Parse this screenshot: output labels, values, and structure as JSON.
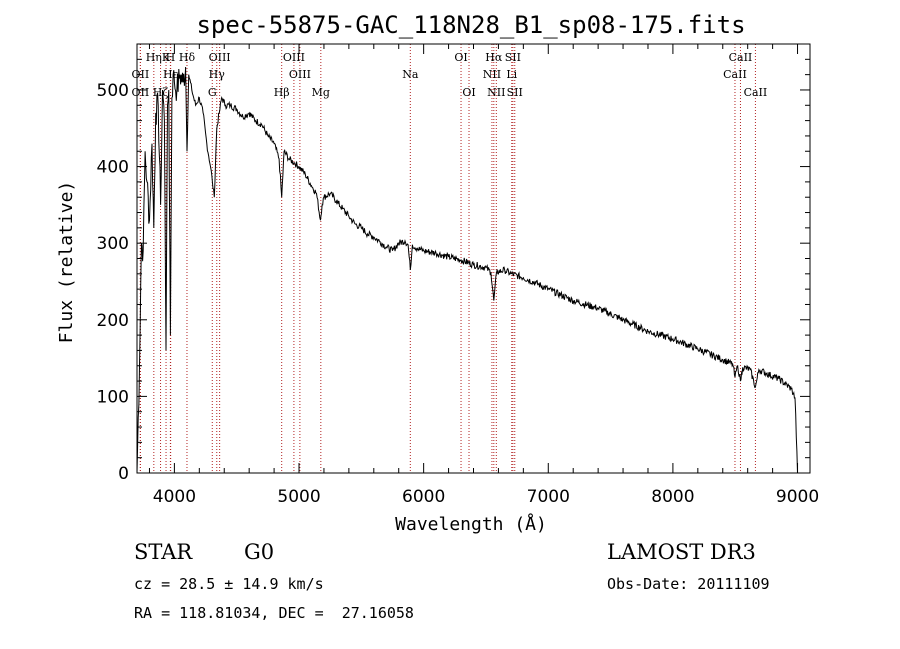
{
  "chart_data": {
    "type": "line",
    "title": "spec-55875-GAC_118N28_B1_sp08-175.fits",
    "xlabel": "Wavelength (Å)",
    "ylabel": "Flux (relative)",
    "xlim": [
      3700,
      9100
    ],
    "ylim": [
      0,
      560
    ],
    "x_ticks": [
      4000,
      5000,
      6000,
      7000,
      8000,
      9000
    ],
    "y_ticks": [
      0,
      100,
      200,
      300,
      400,
      500
    ],
    "x_tick_labels": [
      "4000",
      "5000",
      "6000",
      "7000",
      "8000",
      "9000"
    ],
    "y_tick_labels": [
      "0",
      "100",
      "200",
      "300",
      "400",
      "500"
    ],
    "series": [
      {
        "name": "spectrum",
        "x": [
          3700,
          3720,
          3735,
          3750,
          3765,
          3780,
          3800,
          3820,
          3835,
          3850,
          3870,
          3889,
          3905,
          3920,
          3933,
          3945,
          3955,
          3968,
          3980,
          3990,
          4000,
          4020,
          4045,
          4070,
          4090,
          4101,
          4115,
          4140,
          4170,
          4200,
          4230,
          4260,
          4290,
          4305,
          4320,
          4340,
          4360,
          4380,
          4410,
          4450,
          4500,
          4550,
          4600,
          4650,
          4700,
          4750,
          4800,
          4840,
          4861,
          4880,
          4920,
          4960,
          5000,
          5050,
          5100,
          5140,
          5172,
          5185,
          5200,
          5250,
          5300,
          5350,
          5400,
          5450,
          5500,
          5550,
          5600,
          5650,
          5700,
          5750,
          5800,
          5850,
          5875,
          5893,
          5910,
          5950,
          6000,
          6100,
          6200,
          6300,
          6400,
          6500,
          6540,
          6563,
          6585,
          6650,
          6700,
          6800,
          6900,
          7000,
          7200,
          7400,
          7600,
          7800,
          8000,
          8200,
          8400,
          8480,
          8498,
          8520,
          8542,
          8560,
          8620,
          8662,
          8690,
          8750,
          8850,
          8950,
          8980,
          9000
        ],
        "y": [
          0,
          140,
          300,
          290,
          420,
          380,
          330,
          430,
          320,
          470,
          480,
          350,
          500,
          460,
          160,
          480,
          500,
          180,
          490,
          520,
          510,
          500,
          520,
          510,
          530,
          420,
          520,
          500,
          480,
          490,
          470,
          430,
          400,
          380,
          360,
          450,
          470,
          490,
          480,
          480,
          475,
          465,
          470,
          460,
          455,
          440,
          430,
          410,
          360,
          420,
          410,
          405,
          400,
          390,
          375,
          365,
          330,
          350,
          360,
          365,
          355,
          345,
          335,
          325,
          320,
          312,
          308,
          302,
          295,
          290,
          300,
          303,
          298,
          265,
          298,
          293,
          290,
          287,
          282,
          278,
          272,
          268,
          262,
          225,
          262,
          265,
          260,
          255,
          248,
          240,
          225,
          215,
          200,
          185,
          175,
          162,
          148,
          142,
          125,
          140,
          120,
          138,
          135,
          112,
          135,
          130,
          123,
          110,
          98,
          0
        ]
      }
    ],
    "line_names": [
      "Hδ",
      "Hε",
      "K",
      "H",
      "OII",
      "OIII",
      "Hγ",
      "G",
      "Hβ",
      "Mg",
      "Na",
      "OI",
      "Hα",
      "NII",
      "SII",
      "Li",
      "CaII"
    ],
    "annotations": [
      {
        "x": 3727,
        "label": "OII",
        "row": 2
      },
      {
        "x": 3727,
        "label": "OII",
        "row": 3
      },
      {
        "x": 3835,
        "label": "Hη",
        "row": 1
      },
      {
        "x": 3889,
        "label": "Hζ",
        "row": 3
      },
      {
        "x": 3933,
        "label": "K",
        "row": 1
      },
      {
        "x": 3968,
        "label": "H",
        "row": 1
      },
      {
        "x": 3970,
        "label": "Hε",
        "row": 2
      },
      {
        "x": 4101,
        "label": "Hδ",
        "row": 1
      },
      {
        "x": 4304,
        "label": "G",
        "row": 3
      },
      {
        "x": 4340,
        "label": "Hγ",
        "row": 2
      },
      {
        "x": 4363,
        "label": "OIII",
        "row": 1
      },
      {
        "x": 4861,
        "label": "Hβ",
        "row": 3
      },
      {
        "x": 4959,
        "label": "OIII",
        "row": 1
      },
      {
        "x": 5007,
        "label": "OIII",
        "row": 2
      },
      {
        "x": 5175,
        "label": "Mg",
        "row": 3
      },
      {
        "x": 5893,
        "label": "Na",
        "row": 2
      },
      {
        "x": 6300,
        "label": "OI",
        "row": 1
      },
      {
        "x": 6364,
        "label": "OI",
        "row": 3
      },
      {
        "x": 6548,
        "label": "NII",
        "row": 2
      },
      {
        "x": 6563,
        "label": "Hα",
        "row": 1
      },
      {
        "x": 6583,
        "label": "NII",
        "row": 3
      },
      {
        "x": 6707,
        "label": "Li",
        "row": 2
      },
      {
        "x": 6716,
        "label": "SII",
        "row": 1
      },
      {
        "x": 6731,
        "label": "SII",
        "row": 3
      },
      {
        "x": 8498,
        "label": "CaII",
        "row": 2
      },
      {
        "x": 8542,
        "label": "CaII",
        "row": 1
      },
      {
        "x": 8662,
        "label": "CaII",
        "row": 3
      }
    ]
  },
  "info": {
    "object_type": "STAR",
    "subclass": "G0",
    "survey": "LAMOST DR3",
    "cz": "cz = 28.5 ± 14.9 km/s",
    "obs_date": "Obs-Date: 20111109",
    "coords": "RA = 118.81034, DEC =  27.16058"
  },
  "colors": {
    "line": "#000000",
    "marker": "#b22222",
    "background": "#ffffff"
  }
}
